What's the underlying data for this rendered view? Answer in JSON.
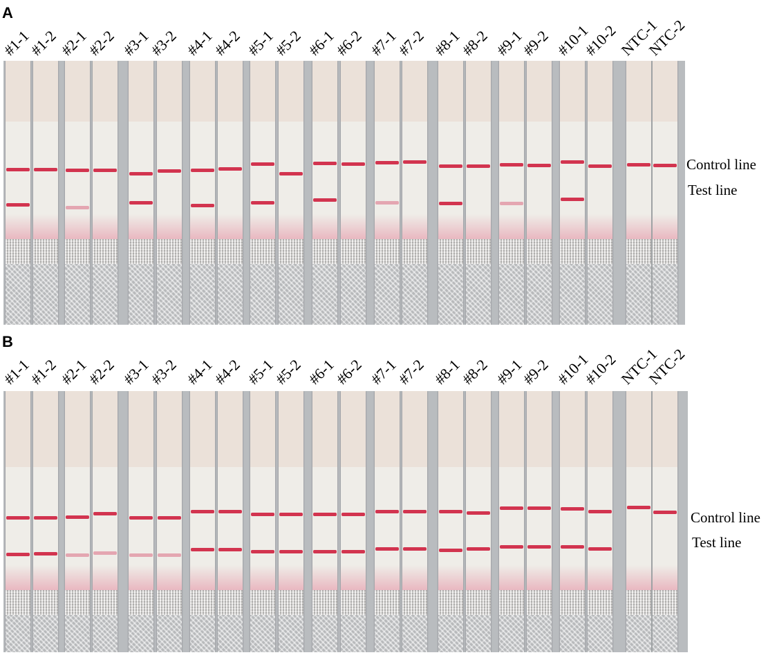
{
  "panels": [
    {
      "letter": "A",
      "strip_labels": [
        "#1-1",
        "#1-2",
        "#2-1",
        "#2-2",
        "#3-1",
        "#3-2",
        "#4-1",
        "#4-2",
        "#5-1",
        "#5-2",
        "#6-1",
        "#6-2",
        "#7-1",
        "#7-2",
        "#8-1",
        "#8-2",
        "#9-1",
        "#9-2",
        "#10-1",
        "#10-2",
        "NTC-1",
        "NTC-2"
      ],
      "control_line_label": "Control line",
      "test_line_label": "Test line",
      "test_line_visible": [
        "strong",
        "none",
        "faint",
        "none",
        "strong",
        "none",
        "strong",
        "none",
        "strong",
        "none",
        "strong",
        "none",
        "faint",
        "none",
        "strong",
        "none",
        "faint",
        "none",
        "strong",
        "none",
        "none",
        "none"
      ]
    },
    {
      "letter": "B",
      "strip_labels": [
        "#1-1",
        "#1-2",
        "#2-1",
        "#2-2",
        "#3-1",
        "#3-2",
        "#4-1",
        "#4-2",
        "#5-1",
        "#5-2",
        "#6-1",
        "#6-2",
        "#7-1",
        "#7-2",
        "#8-1",
        "#8-2",
        "#9-1",
        "#9-2",
        "#10-1",
        "#10-2",
        "NTC-1",
        "NTC-2"
      ],
      "control_line_label": "Control line",
      "test_line_label": "Test line",
      "test_line_visible": [
        "strong",
        "strong",
        "faint",
        "faint",
        "faint",
        "faint",
        "strong",
        "strong",
        "strong",
        "strong",
        "strong",
        "strong",
        "strong",
        "strong",
        "strong",
        "strong",
        "strong",
        "strong",
        "strong",
        "strong",
        "none",
        "none"
      ]
    }
  ]
}
